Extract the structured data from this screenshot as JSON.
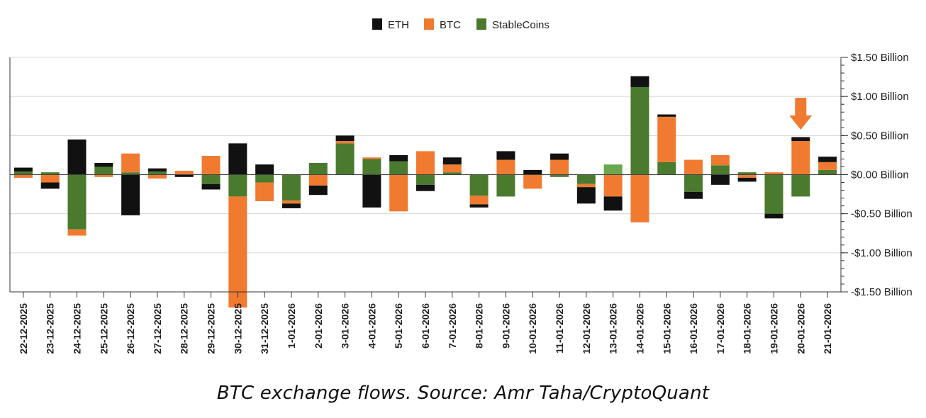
{
  "chart_data": {
    "type": "bar",
    "stacked": true,
    "title": "",
    "xlabel": "",
    "ylabel": "",
    "ylim": [
      -1.5,
      1.5
    ],
    "y_unit": "USD billion",
    "y_ticks": [
      {
        "value": 1.5,
        "label": "$1.50 Billion"
      },
      {
        "value": 1.0,
        "label": "$1.00 Billion"
      },
      {
        "value": 0.5,
        "label": "$0.50 Billion"
      },
      {
        "value": 0.0,
        "label": "$0.00 Billion"
      },
      {
        "value": -0.5,
        "label": "-$0.50 Billion"
      },
      {
        "value": -1.0,
        "label": "-$1.00 Billion"
      },
      {
        "value": -1.5,
        "label": "-$1.50 Billion"
      }
    ],
    "legend_position": "top-center",
    "categories": [
      "22-12-2025",
      "23-12-2025",
      "24-12-2025",
      "25-12-2025",
      "26-12-2025",
      "27-12-2025",
      "28-12-2025",
      "29-12-2025",
      "30-12-2025",
      "31-12-2025",
      "1-01-2026",
      "2-01-2026",
      "3-01-2026",
      "4-01-2026",
      "5-01-2026",
      "6-01-2026",
      "7-01-2026",
      "8-01-2026",
      "9-01-2026",
      "10-01-2026",
      "11-01-2026",
      "12-01-2026",
      "13-01-2026",
      "14-01-2026",
      "15-01-2026",
      "16-01-2026",
      "17-01-2026",
      "18-01-2026",
      "19-01-2026",
      "20-01-2026",
      "21-01-2026"
    ],
    "series": [
      {
        "name": "StableCoins",
        "color": "#4a7a2e",
        "values": [
          0.04,
          0.03,
          -0.7,
          0.1,
          0.03,
          0.04,
          0.0,
          -0.12,
          -0.28,
          -0.1,
          -0.33,
          0.15,
          0.4,
          0.2,
          0.17,
          -0.13,
          0.03,
          -0.27,
          -0.28,
          0.0,
          -0.03,
          -0.12,
          0.13,
          1.12,
          0.16,
          -0.22,
          0.12,
          0.03,
          -0.5,
          -0.28,
          0.06
        ]
      },
      {
        "name": "BTC",
        "color": "#f07a30",
        "values": [
          -0.04,
          -0.1,
          -0.08,
          -0.03,
          0.24,
          -0.05,
          0.05,
          0.24,
          -1.42,
          -0.24,
          -0.04,
          -0.14,
          0.03,
          0.02,
          -0.47,
          0.3,
          0.1,
          -0.11,
          0.19,
          -0.18,
          0.19,
          -0.04,
          -0.28,
          -0.61,
          0.58,
          0.19,
          0.13,
          -0.04,
          0.03,
          0.43,
          0.1
        ]
      },
      {
        "name": "ETH",
        "color": "#111111",
        "values": [
          0.05,
          -0.08,
          0.45,
          0.05,
          -0.52,
          0.04,
          -0.03,
          -0.07,
          0.4,
          0.13,
          -0.06,
          -0.12,
          0.07,
          -0.42,
          0.08,
          -0.08,
          0.09,
          -0.04,
          0.11,
          0.06,
          0.08,
          -0.21,
          -0.18,
          0.14,
          0.03,
          -0.09,
          -0.13,
          -0.05,
          -0.06,
          0.05,
          0.07
        ]
      }
    ],
    "annotations": [
      {
        "type": "arrow",
        "color": "#f07a30",
        "points_to": "20-01-2026",
        "direction": "down"
      }
    ]
  },
  "legend": [
    {
      "label": "ETH",
      "color": "#111111"
    },
    {
      "label": "BTC",
      "color": "#f07a30"
    },
    {
      "label": "StableCoins",
      "color": "#4a7a2e"
    }
  ],
  "caption": "BTC exchange flows. Source: Amr Taha/CryptoQuant"
}
